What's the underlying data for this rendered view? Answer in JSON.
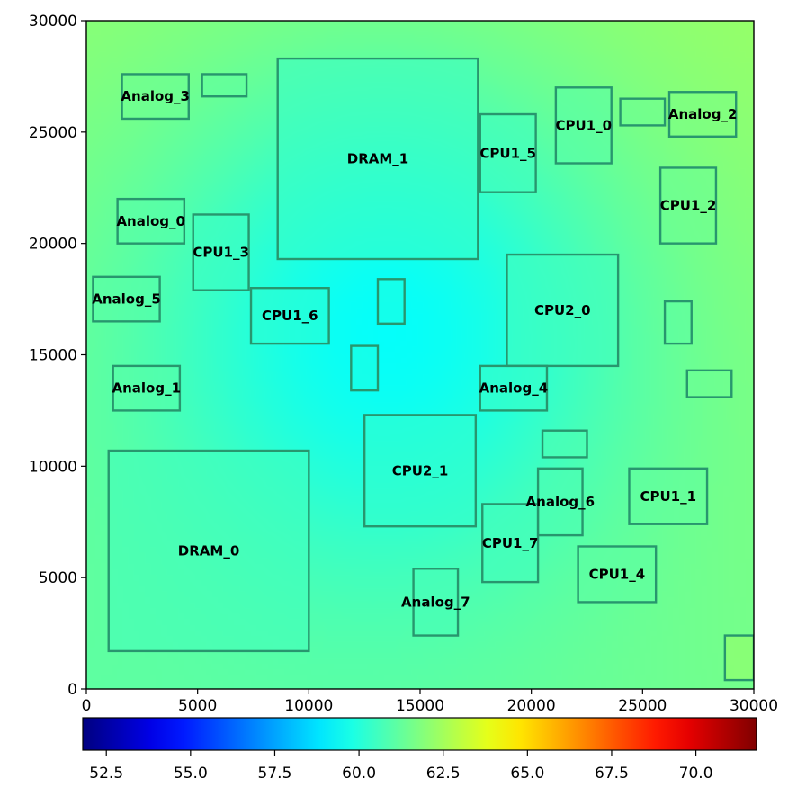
{
  "chart_data": {
    "type": "heatmap",
    "title": "",
    "xlabel": "",
    "ylabel": "",
    "xlim": [
      0,
      30000
    ],
    "ylim": [
      0,
      30000
    ],
    "x_ticks": [
      0,
      5000,
      10000,
      15000,
      20000,
      25000,
      30000
    ],
    "y_ticks": [
      0,
      5000,
      10000,
      15000,
      20000,
      25000,
      30000
    ],
    "x_tick_labels": [
      "0",
      "5000",
      "10000",
      "15000",
      "20000",
      "25000",
      "30000"
    ],
    "y_tick_labels": [
      "0",
      "5000",
      "10000",
      "15000",
      "20000",
      "25000",
      "30000"
    ],
    "colormap": "jet",
    "colorbar": {
      "orientation": "horizontal",
      "placement": "bottom",
      "range": [
        51.8,
        71.8
      ],
      "ticks": [
        52.5,
        55.0,
        57.5,
        60.0,
        62.5,
        65.0,
        67.5,
        70.0
      ],
      "tick_labels": [
        "52.5",
        "55.0",
        "57.5",
        "60.0",
        "62.5",
        "65.0",
        "67.5",
        "70.0"
      ]
    },
    "field": {
      "description_hotspot": "peak near center, values rising toward corners",
      "min_value": 59.4,
      "max_value": 62.3,
      "min_location": [
        13500,
        16000
      ],
      "corner_values": {
        "top_left": 62.1,
        "top_right": 62.3,
        "bottom_left": 61.2,
        "bottom_right": 61.6
      }
    },
    "blocks": [
      {
        "name": "DRAM_0",
        "x0": 1000,
        "y0": 1700,
        "x1": 10000,
        "y1": 10700,
        "value": 60.6
      },
      {
        "name": "DRAM_1",
        "x0": 8600,
        "y0": 19300,
        "x1": 17600,
        "y1": 28300,
        "value": 60.4
      },
      {
        "name": "CPU2_0",
        "x0": 18900,
        "y0": 14500,
        "x1": 23900,
        "y1": 19500,
        "value": 60.6
      },
      {
        "name": "CPU2_1",
        "x0": 12500,
        "y0": 7300,
        "x1": 17500,
        "y1": 12300,
        "value": 60.3
      },
      {
        "name": "CPU1_0",
        "x0": 21100,
        "y0": 23600,
        "x1": 23600,
        "y1": 27000,
        "value": 61.0
      },
      {
        "name": "CPU1_1",
        "x0": 24400,
        "y0": 7400,
        "x1": 27900,
        "y1": 9900,
        "value": 61.2
      },
      {
        "name": "CPU1_2",
        "x0": 25800,
        "y0": 20000,
        "x1": 28300,
        "y1": 23400,
        "value": 61.4
      },
      {
        "name": "CPU1_3",
        "x0": 4800,
        "y0": 17900,
        "x1": 7300,
        "y1": 21300,
        "value": 60.5
      },
      {
        "name": "CPU1_4",
        "x0": 22100,
        "y0": 3900,
        "x1": 25600,
        "y1": 6400,
        "value": 61.1
      },
      {
        "name": "CPU1_5",
        "x0": 17700,
        "y0": 22300,
        "x1": 20200,
        "y1": 25800,
        "value": 60.6
      },
      {
        "name": "CPU1_6",
        "x0": 7400,
        "y0": 15500,
        "x1": 10900,
        "y1": 18000,
        "value": 60.2
      },
      {
        "name": "CPU1_7",
        "x0": 17800,
        "y0": 4800,
        "x1": 20300,
        "y1": 8300,
        "value": 60.6
      },
      {
        "name": "Analog_0",
        "x0": 1400,
        "y0": 20000,
        "x1": 4400,
        "y1": 22000,
        "value": 61.0
      },
      {
        "name": "Analog_1",
        "x0": 1200,
        "y0": 12500,
        "x1": 4200,
        "y1": 14500,
        "value": 61.0
      },
      {
        "name": "Analog_2",
        "x0": 26200,
        "y0": 24800,
        "x1": 29200,
        "y1": 26800,
        "value": 61.7
      },
      {
        "name": "Analog_3",
        "x0": 1600,
        "y0": 25600,
        "x1": 4600,
        "y1": 27600,
        "value": 61.4
      },
      {
        "name": "Analog_4",
        "x0": 17700,
        "y0": 12500,
        "x1": 20700,
        "y1": 14500,
        "value": 60.4
      },
      {
        "name": "Analog_5",
        "x0": 300,
        "y0": 16500,
        "x1": 3300,
        "y1": 18500,
        "value": 61.0
      },
      {
        "name": "Analog_6",
        "x0": 20300,
        "y0": 6900,
        "x1": 22300,
        "y1": 9900,
        "value": 60.8
      },
      {
        "name": "Analog_7",
        "x0": 14700,
        "y0": 2400,
        "x1": 16700,
        "y1": 5400,
        "value": 60.7
      },
      {
        "name": "",
        "x0": 5200,
        "y0": 26600,
        "x1": 7200,
        "y1": 27600,
        "value": 61.2
      },
      {
        "name": "",
        "x0": 24000,
        "y0": 25300,
        "x1": 26000,
        "y1": 26500,
        "value": 61.4
      },
      {
        "name": "",
        "x0": 26000,
        "y0": 15500,
        "x1": 27200,
        "y1": 17400,
        "value": 61.1
      },
      {
        "name": "",
        "x0": 27000,
        "y0": 13100,
        "x1": 29000,
        "y1": 14300,
        "value": 61.4
      },
      {
        "name": "",
        "x0": 20500,
        "y0": 10400,
        "x1": 22500,
        "y1": 11600,
        "value": 60.8
      },
      {
        "name": "",
        "x0": 13100,
        "y0": 16400,
        "x1": 14300,
        "y1": 18400,
        "value": 59.9
      },
      {
        "name": "",
        "x0": 11900,
        "y0": 13400,
        "x1": 13100,
        "y1": 15400,
        "value": 59.9
      },
      {
        "name": "",
        "x0": 28700,
        "y0": 400,
        "x1": 30000,
        "y1": 2400,
        "value": 62.3
      }
    ]
  }
}
